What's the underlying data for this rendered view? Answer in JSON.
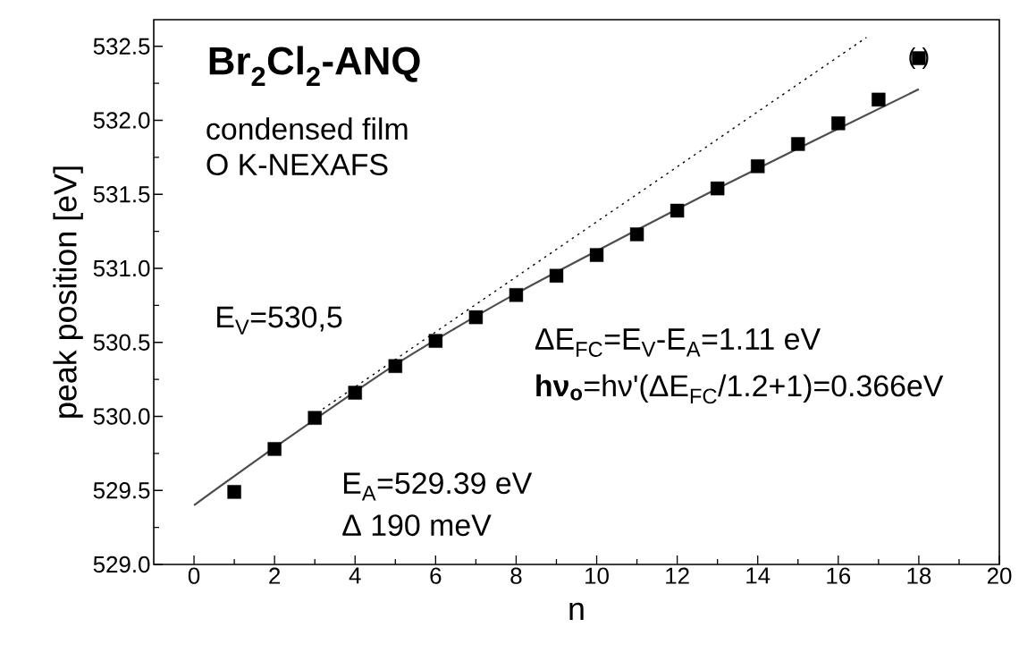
{
  "chart_data": {
    "type": "scatter",
    "title": "Br$_{2}$Cl$_{2}$-ANQ",
    "xlabel": "n",
    "ylabel": "peak position [eV]",
    "xlim": [
      -1,
      20
    ],
    "ylim": [
      529.0,
      532.68
    ],
    "xticks": [
      0,
      2,
      4,
      6,
      8,
      10,
      12,
      14,
      16,
      18,
      20
    ],
    "yticks": [
      {
        "value": 529.0,
        "label": "529.0"
      },
      {
        "value": 529.5,
        "label": "529.5"
      },
      {
        "value": 530.0,
        "label": "530.0"
      },
      {
        "value": 530.5,
        "label": "530.5"
      },
      {
        "value": 531.0,
        "label": "531.0"
      },
      {
        "value": 531.5,
        "label": "531.5"
      },
      {
        "value": 532.0,
        "label": "532.0"
      },
      {
        "value": 532.5,
        "label": "532.5"
      }
    ],
    "series": [
      {
        "type": "scatter",
        "color": "#000000",
        "marker": "square",
        "x": [
          1,
          2,
          3,
          4,
          5,
          6,
          7,
          8,
          9,
          10,
          11,
          12,
          13,
          14,
          15,
          16,
          17
        ],
        "values": [
          529.49,
          529.78,
          529.99,
          530.16,
          530.34,
          530.51,
          530.67,
          530.82,
          530.95,
          531.09,
          531.23,
          531.39,
          531.54,
          531.69,
          531.84,
          531.98,
          532.14
        ]
      },
      {
        "type": "scatter",
        "color": "#000000",
        "marker": "square",
        "x": [
          18
        ],
        "values": [
          532.42
        ]
      },
      {
        "type": "line",
        "color": "#4d4d4d",
        "line_style": "solid",
        "x": [
          0,
          2,
          5,
          8,
          13,
          18
        ],
        "values": [
          529.4,
          529.79,
          530.35,
          530.83,
          531.54,
          532.21
        ]
      },
      {
        "type": "line",
        "color": "#000000",
        "line_style": "dotted",
        "x": [
          3.2,
          16.7
        ],
        "values": [
          530.05,
          532.56
        ]
      }
    ],
    "annotations": [
      "condensed film",
      "O K-NEXAFS",
      "E$_{V}$=530,5",
      "E$_{A}$=529.39 eV",
      "Δ 190 meV",
      "ΔE$_{FC}$=E$_{V}$-E$_{A}$=1.11 eV",
      "**hν$_{o}$**=hν'(ΔE$_{FC}$/1.2+1)=0.366eV",
      {
        "text": "(   )",
        "x": 18,
        "y": 532.42
      }
    ]
  }
}
